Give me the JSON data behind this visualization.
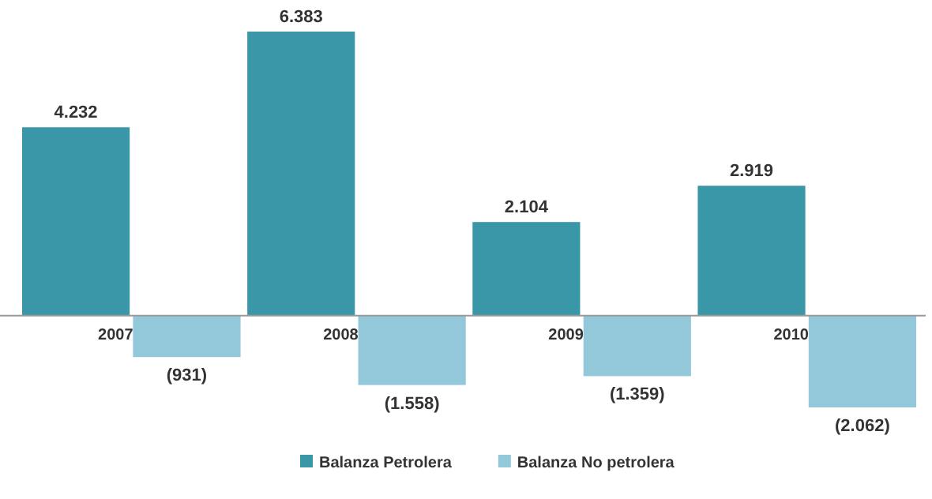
{
  "chart_data": {
    "type": "bar",
    "categories": [
      "2007",
      "2008",
      "2009",
      "2010"
    ],
    "legend": "bottom",
    "series": [
      {
        "name": "Balanza Petrolera",
        "color": "#3a97a8",
        "values": [
          4232,
          6383,
          2104,
          2919
        ],
        "value_labels": [
          "4.232",
          "6.383",
          "2.104",
          "2.919"
        ]
      },
      {
        "name": "Balanza No petrolera",
        "color": "#93c7da",
        "values": [
          -931,
          -1558,
          -1359,
          -2062
        ],
        "value_labels": [
          "(931)",
          "(1.558)",
          "(1.359)",
          "(2.062)"
        ]
      }
    ]
  }
}
